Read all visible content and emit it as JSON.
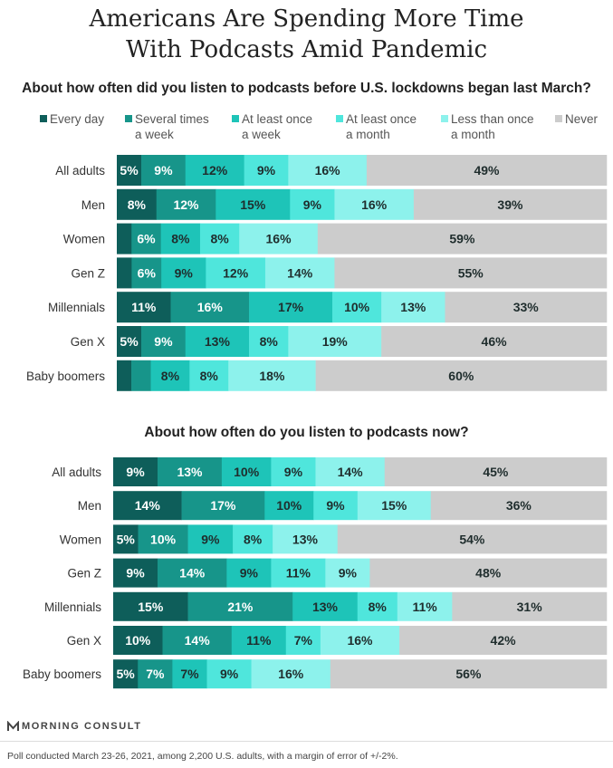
{
  "title_line1": "Americans Are Spending More Time",
  "title_line2": "With Podcasts Amid Pandemic",
  "legend": [
    {
      "label": "Every day",
      "color": "#0e5e5a"
    },
    {
      "label": "Several times\na week",
      "color": "#17958a"
    },
    {
      "label": "At least once\na week",
      "color": "#1ec4b8"
    },
    {
      "label": "At least once\na month",
      "color": "#4fe6dc"
    },
    {
      "label": "Less than once\na month",
      "color": "#8df2ec"
    },
    {
      "label": "Never",
      "color": "#cccccc"
    }
  ],
  "brand": "MORNING CONSULT",
  "footnote": "Poll conducted March 23-26, 2021, among 2,200 U.S. adults, with a margin of error of +/-2%.",
  "chart_data": [
    {
      "type": "bar",
      "orientation": "horizontal",
      "stacked": true,
      "title": "About how often did you listen to podcasts before U.S. lockdowns began last March?",
      "categories": [
        "All adults",
        "Men",
        "Women",
        "Gen Z",
        "Millennials",
        "Gen X",
        "Baby boomers"
      ],
      "series": [
        {
          "name": "Every day",
          "values": [
            5,
            8,
            3,
            3,
            11,
            5,
            3
          ]
        },
        {
          "name": "Several times a week",
          "values": [
            9,
            12,
            6,
            6,
            16,
            9,
            4
          ]
        },
        {
          "name": "At least once a week",
          "values": [
            12,
            15,
            8,
            9,
            17,
            13,
            8
          ]
        },
        {
          "name": "At least once a month",
          "values": [
            9,
            9,
            8,
            12,
            10,
            8,
            8
          ]
        },
        {
          "name": "Less than once a month",
          "values": [
            16,
            16,
            16,
            14,
            13,
            19,
            18
          ]
        },
        {
          "name": "Never",
          "values": [
            49,
            39,
            59,
            55,
            33,
            46,
            60
          ]
        }
      ],
      "label_threshold": 5
    },
    {
      "type": "bar",
      "orientation": "horizontal",
      "stacked": true,
      "title": "About how often do you listen to podcasts now?",
      "categories": [
        "All adults",
        "Men",
        "Women",
        "Gen Z",
        "Millennials",
        "Gen X",
        "Baby boomers"
      ],
      "series": [
        {
          "name": "Every day",
          "values": [
            9,
            14,
            5,
            9,
            15,
            10,
            5
          ]
        },
        {
          "name": "Several times a week",
          "values": [
            13,
            17,
            10,
            14,
            21,
            14,
            7
          ]
        },
        {
          "name": "At least once a week",
          "values": [
            10,
            10,
            9,
            9,
            13,
            11,
            7
          ]
        },
        {
          "name": "At least once a month",
          "values": [
            9,
            9,
            8,
            11,
            8,
            7,
            9
          ]
        },
        {
          "name": "Less than once a month",
          "values": [
            14,
            15,
            13,
            9,
            11,
            16,
            16
          ]
        },
        {
          "name": "Never",
          "values": [
            45,
            36,
            54,
            48,
            31,
            42,
            56
          ]
        }
      ],
      "label_threshold": 5
    }
  ]
}
